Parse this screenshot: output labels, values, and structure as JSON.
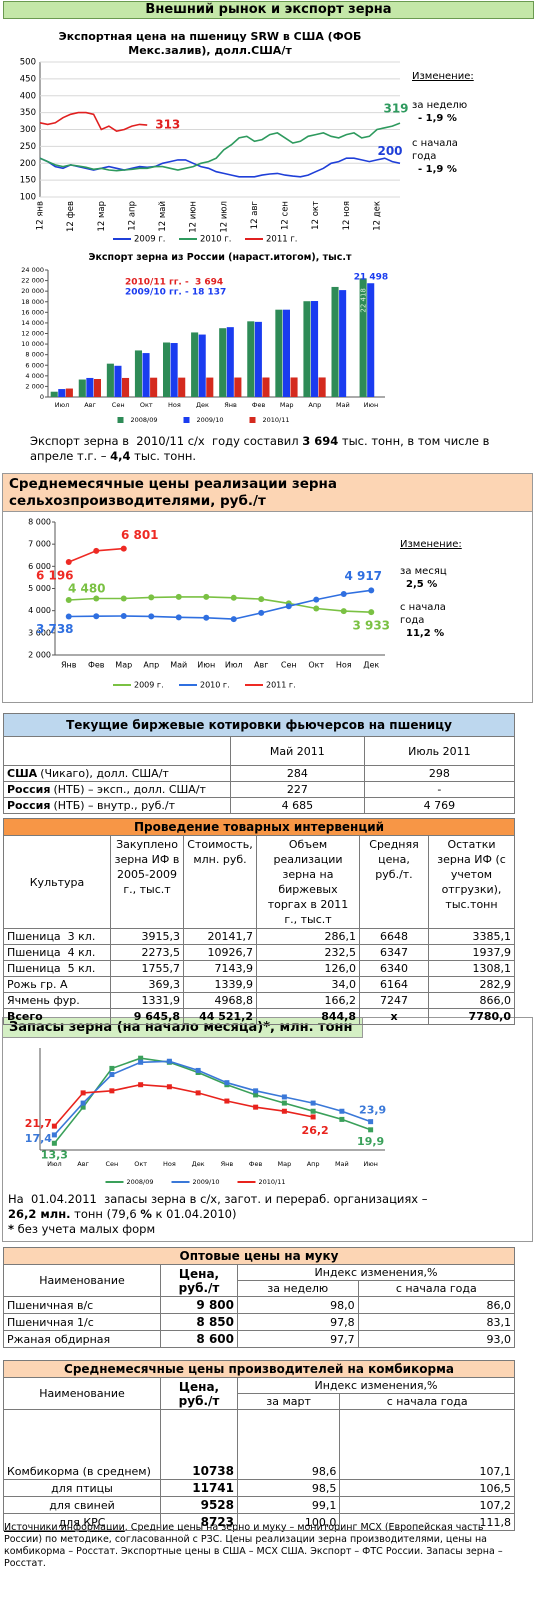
{
  "header": {
    "title": "Внешний рынок и экспорт зерна"
  },
  "chart_data": [
    {
      "type": "line",
      "title": "Экспортная цена на пшеницу SRW в США (ФОБ Мекс.залив), долл.США/т",
      "categories": [
        "12 янв",
        null,
        null,
        null,
        "12 фев",
        null,
        null,
        null,
        "12 мар",
        null,
        null,
        null,
        "12 апр",
        null,
        null,
        null,
        "12 май",
        null,
        null,
        null,
        "12 июн",
        null,
        null,
        null,
        "12 июл",
        null,
        null,
        null,
        "12 авг",
        null,
        null,
        null,
        "12 сен",
        null,
        null,
        null,
        "12 окт",
        null,
        null,
        null,
        "12 ноя",
        null,
        null,
        null,
        "12 дек",
        null,
        null,
        null
      ],
      "series": [
        {
          "name": "2009 г.",
          "color": "#1f3fd8",
          "values": [
            215,
            205,
            190,
            185,
            195,
            190,
            185,
            180,
            185,
            190,
            185,
            180,
            185,
            190,
            188,
            190,
            200,
            205,
            210,
            210,
            200,
            190,
            185,
            175,
            170,
            165,
            160,
            160,
            160,
            165,
            168,
            170,
            165,
            162,
            160,
            165,
            175,
            185,
            200,
            205,
            215,
            215,
            210,
            205,
            210,
            215,
            205,
            200
          ],
          "value_labels": [
            null,
            null,
            null,
            null,
            null,
            null,
            null,
            null,
            null,
            null,
            null,
            null,
            null,
            null,
            null,
            null,
            null,
            null,
            null,
            null,
            null,
            null,
            null,
            null,
            null,
            null,
            null,
            null,
            null,
            null,
            null,
            null,
            null,
            null,
            null,
            null,
            null,
            null,
            null,
            null,
            null,
            null,
            null,
            null,
            null,
            null,
            null,
            "200"
          ]
        },
        {
          "name": "2010 г.",
          "color": "#2e9a5e",
          "values": [
            215,
            205,
            195,
            190,
            195,
            192,
            188,
            182,
            185,
            180,
            178,
            180,
            182,
            185,
            185,
            190,
            190,
            185,
            180,
            185,
            190,
            200,
            205,
            215,
            240,
            255,
            275,
            280,
            265,
            270,
            285,
            290,
            275,
            260,
            265,
            280,
            285,
            290,
            280,
            275,
            285,
            290,
            275,
            280,
            300,
            305,
            310,
            319
          ],
          "value_labels": [
            null,
            null,
            null,
            null,
            null,
            null,
            null,
            null,
            null,
            null,
            null,
            null,
            null,
            null,
            null,
            null,
            null,
            null,
            null,
            null,
            null,
            null,
            null,
            null,
            null,
            null,
            null,
            null,
            null,
            null,
            null,
            null,
            null,
            null,
            null,
            null,
            null,
            null,
            null,
            null,
            null,
            null,
            null,
            null,
            null,
            null,
            null,
            "319"
          ]
        },
        {
          "name": "2011 г.",
          "color": "#e02020",
          "values": [
            320,
            315,
            320,
            335,
            345,
            350,
            350,
            345,
            300,
            310,
            295,
            300,
            310,
            315,
            313,
            null,
            null,
            null,
            null,
            null,
            null,
            null,
            null,
            null,
            null,
            null,
            null,
            null,
            null,
            null,
            null,
            null,
            null,
            null,
            null,
            null,
            null,
            null,
            null,
            null,
            null,
            null,
            null,
            null,
            null,
            null,
            null,
            null
          ],
          "value_labels": [
            null,
            null,
            null,
            null,
            null,
            null,
            null,
            null,
            null,
            null,
            null,
            null,
            null,
            null,
            "313",
            null,
            null,
            null,
            null,
            null,
            null,
            null,
            null,
            null,
            null,
            null,
            null,
            null,
            null,
            null,
            null,
            null,
            null,
            null,
            null,
            null,
            null,
            null,
            null,
            null,
            null,
            null,
            null,
            null,
            null,
            null,
            null,
            null
          ]
        }
      ],
      "ylim": [
        100,
        500
      ],
      "yticks": [
        100,
        150,
        200,
        250,
        300,
        350,
        400,
        450,
        500
      ],
      "grid": true,
      "markers": "none",
      "annotations": [
        "Изменение:",
        "за неделю",
        "- 1,9 %",
        "с начала года",
        "- 1,9 %"
      ]
    },
    {
      "type": "bar",
      "title": "Экспорт зерна из России (нараст.итогом), тыс.т",
      "categories": [
        "Июл",
        "Авг",
        "Сен",
        "Окт",
        "Ноя",
        "Дек",
        "Янв",
        "Фев",
        "Мар",
        "Апр",
        "Май",
        "Июн"
      ],
      "series": [
        {
          "name": "2008/09",
          "color": "#2e8b57",
          "values": [
            1000,
            3300,
            6300,
            8800,
            10300,
            12200,
            13000,
            14300,
            16500,
            18100,
            20800,
            22418
          ],
          "value_labels": [
            null,
            null,
            null,
            null,
            null,
            null,
            null,
            null,
            null,
            null,
            null,
            "22 418"
          ]
        },
        {
          "name": "2009/10",
          "color": "#1a3cf0",
          "values": [
            1500,
            3600,
            5900,
            8300,
            10200,
            11800,
            13200,
            14200,
            16500,
            18137,
            20200,
            21498
          ],
          "value_labels": [
            null,
            null,
            null,
            null,
            null,
            null,
            null,
            null,
            null,
            null,
            null,
            "21 498"
          ]
        },
        {
          "name": "2010/11",
          "color": "#d42a1e",
          "values": [
            1600,
            3400,
            3600,
            3650,
            3660,
            3670,
            3680,
            3685,
            3690,
            3694,
            null,
            null
          ]
        }
      ],
      "ylim": [
        0,
        24000
      ],
      "yticks": [
        0,
        {
          "value": 2000,
          "label": "2 000"
        },
        {
          "value": 4000,
          "label": "4 000"
        },
        {
          "value": 6000,
          "label": "6 000"
        },
        {
          "value": 8000,
          "label": "8 000"
        },
        {
          "value": 10000,
          "label": "10 000"
        },
        {
          "value": 12000,
          "label": "12 000"
        },
        {
          "value": 14000,
          "label": "14 000"
        },
        {
          "value": 16000,
          "label": "16 000"
        },
        {
          "value": 18000,
          "label": "18 000"
        },
        {
          "value": 20000,
          "label": "20 000"
        },
        {
          "value": 22000,
          "label": "22 000"
        },
        {
          "value": 24000,
          "label": "24 000"
        }
      ],
      "grid": false,
      "annotations": [
        "2010/11 гг. -  3 694",
        "2009/10 гг. - 18 137"
      ]
    },
    {
      "type": "line",
      "title": "Среднемесячные цены реализации зерна сельхозпроизводителями, руб./т",
      "categories": [
        "Янв",
        "Фев",
        "Мар",
        "Апр",
        "Май",
        "Июн",
        "Июл",
        "Авг",
        "Сен",
        "Окт",
        "Ноя",
        "Дек"
      ],
      "series": [
        {
          "name": "2009 г.",
          "color": "#7ac143",
          "values": [
            4480,
            4550,
            4550,
            4600,
            4620,
            4620,
            4580,
            4520,
            4330,
            4100,
            3980,
            3933
          ],
          "value_labels": [
            "4 480",
            null,
            null,
            null,
            null,
            null,
            null,
            null,
            null,
            null,
            null,
            "3 933"
          ]
        },
        {
          "name": "2010 г.",
          "color": "#2f6fe0",
          "values": [
            3738,
            3750,
            3760,
            3740,
            3700,
            3680,
            3620,
            3900,
            4200,
            4500,
            4750,
            4917
          ],
          "value_labels": [
            "3 738",
            null,
            null,
            null,
            null,
            null,
            null,
            null,
            null,
            null,
            null,
            "4 917"
          ]
        },
        {
          "name": "2011 г.",
          "color": "#ee2a24",
          "values": [
            6196,
            6700,
            6801,
            null,
            null,
            null,
            null,
            null,
            null,
            null,
            null,
            null
          ],
          "value_labels": [
            "6 196",
            null,
            "6 801",
            null,
            null,
            null,
            null,
            null,
            null,
            null,
            null,
            null
          ]
        }
      ],
      "ylim": [
        2000,
        8000
      ],
      "yticks": [
        {
          "value": 2000,
          "label": "2 000"
        },
        {
          "value": 3000,
          "label": "3 000"
        },
        {
          "value": 4000,
          "label": "4 000"
        },
        {
          "value": 5000,
          "label": "5 000"
        },
        {
          "value": 6000,
          "label": "6 000"
        },
        {
          "value": 7000,
          "label": "7 000"
        },
        {
          "value": 8000,
          "label": "8 000"
        }
      ],
      "grid": false,
      "markers": "circle",
      "annotations": [
        "Изменение:",
        "за месяц",
        "2,5 %",
        "с начала года",
        "11,2 %"
      ]
    },
    {
      "type": "line",
      "title": "Запасы зерна (на начало месяца)*, млн. тонн",
      "categories": [
        "Июл",
        "Авг",
        "Сен",
        "Окт",
        "Ноя",
        "Дек",
        "Янв",
        "Фев",
        "Мар",
        "Апр",
        "Май",
        "Июн"
      ],
      "series": [
        {
          "name": "2008/09",
          "color": "#3aa05a",
          "values": [
            13.3,
            31,
            50,
            55,
            53,
            48,
            42,
            37,
            33,
            29,
            25,
            19.9
          ],
          "value_labels": [
            "13,3",
            null,
            null,
            null,
            null,
            null,
            null,
            null,
            null,
            null,
            null,
            "19,9"
          ]
        },
        {
          "name": "2009/10",
          "color": "#3a78d8",
          "values": [
            17.4,
            33,
            47,
            53,
            53.5,
            49,
            43,
            39,
            36,
            33,
            29,
            23.9
          ],
          "value_labels": [
            "17,4",
            null,
            null,
            null,
            null,
            null,
            null,
            null,
            null,
            null,
            null,
            "23,9"
          ]
        },
        {
          "name": "2010/11",
          "color": "#e8231d",
          "values": [
            21.7,
            38,
            39,
            42,
            41,
            38,
            34,
            31,
            29,
            26.2,
            null,
            null
          ],
          "value_labels": [
            "21,7",
            null,
            null,
            null,
            null,
            null,
            null,
            null,
            null,
            "26,2",
            null,
            null
          ]
        }
      ],
      "ylim": [
        10,
        60
      ],
      "grid": false,
      "markers": "square"
    }
  ],
  "export_text": [
    {
      "text": "Экспорт зерна в  2010/11 с/х  году составил ",
      "bold": false
    },
    {
      "text": "3 694",
      "bold": true
    },
    {
      "text": " тыс. тонн, в том числе в апреле т.г. – ",
      "bold": false
    },
    {
      "text": "4,4",
      "bold": true
    },
    {
      "text": " тыс. тонн.",
      "bold": false
    }
  ],
  "futures": {
    "title": "Текущие биржевые котировки фьючерсов на пшеницу",
    "columns": [
      "Май 2011",
      "Июль 2011"
    ],
    "rows": [
      {
        "name": [
          "США",
          "(Чикаго), долл. США/т"
        ],
        "cells": [
          "284",
          "298"
        ]
      },
      {
        "name": [
          "Россия",
          "(НТБ) – эксп., долл. США/т"
        ],
        "cells": [
          "227",
          "-"
        ]
      },
      {
        "name": [
          "Россия",
          "(НТБ) – внутр., руб./т"
        ],
        "cells": [
          "4 685",
          "4 769"
        ]
      }
    ]
  },
  "interventions": {
    "title": "Проведение товарных интервенций",
    "columns": [
      "Культура",
      "Закуплено зерна ИФ в 2005-2009 г., тыс.т",
      "Стоимость, млн. руб.",
      "Объем реализации зерна на биржевых торгах в 2011 г., тыс.т",
      "Средняя цена, руб./т.",
      "Остатки зерна ИФ (с учетом отгрузки), тыс.тонн"
    ],
    "rows": [
      [
        "Пшеница  3 кл.",
        "3915,3",
        "20141,7",
        "286,1",
        "6648",
        "3385,1"
      ],
      [
        "Пшеница  4 кл.",
        "2273,5",
        "10926,7",
        "232,5",
        "6347",
        "1937,9"
      ],
      [
        "Пшеница  5 кл.",
        "1755,7",
        "7143,9",
        "126,0",
        "6340",
        "1308,1"
      ],
      [
        "Рожь гр. А",
        "369,3",
        "1339,9",
        "34,0",
        "6164",
        "282,9"
      ],
      [
        "Ячмень фур.",
        "1331,9",
        "4968,8",
        "166,2",
        "7247",
        "866,0"
      ]
    ],
    "total": [
      "Всего",
      "9 645,8",
      "44 521,2",
      "844,8",
      "х",
      "7780,0"
    ]
  },
  "stocks_text": [
    {
      "text": "На  01.04.2011  запасы зерна в с/х, загот. и перераб. организациях – ",
      "bold": false
    },
    {
      "text": "26,2 млн.",
      "bold": true
    },
    {
      "text": " тонн (79,6 ",
      "bold": false
    },
    {
      "text": "%",
      "bold": true
    },
    {
      "text": " к 01.04.2010)",
      "bold": false
    }
  ],
  "stocks_note": [
    {
      "text": "*",
      "bold": true
    },
    {
      "text": " без учета малых форм",
      "bold": false
    }
  ],
  "flour": {
    "title": "Оптовые цены на муку",
    "columns": [
      "Наименование",
      "Цена, руб./т",
      "Индекс изменения,%"
    ],
    "subcolumns": [
      "за неделю",
      "с начала года"
    ],
    "rows": [
      [
        "Пшеничная в/с",
        "9 800",
        "98,0",
        "86,0"
      ],
      [
        "Пшеничная  1/с",
        "8 850",
        "97,8",
        "83,1"
      ],
      [
        "Ржаная обдирная",
        "8 600",
        "97,7",
        "93,0"
      ]
    ]
  },
  "feed": {
    "title": "Среднемесячные цены производителей  на комбикорма",
    "columns": [
      "Наименование",
      "Цена, руб./т",
      "Индекс изменения,%"
    ],
    "subcolumns": [
      "за март",
      "с начала года"
    ],
    "rows": [
      [
        "Комбикорма (в среднем)",
        "10738",
        "98,6",
        "107,1"
      ],
      [
        "для птицы",
        "11741",
        "98,5",
        "106,5"
      ],
      [
        "для свиней",
        "9528",
        "99,1",
        "107,2"
      ],
      [
        "для КРС",
        "8723",
        "100,0",
        "111,8"
      ]
    ]
  },
  "sources": [
    {
      "text": "Источники информации",
      "underline": true
    },
    {
      "text": ". Средние цены на зерно и муку – мониторинг МСХ (Европейская часть России) по методике, согласованной с РЗС. Цены реализации зерна производителями, цены на комбикорма – Росстат. Экспортные цены в США – МСХ США. Экспорт – ФТС России. Запасы зерна – Росстат.",
      "underline": false
    }
  ]
}
